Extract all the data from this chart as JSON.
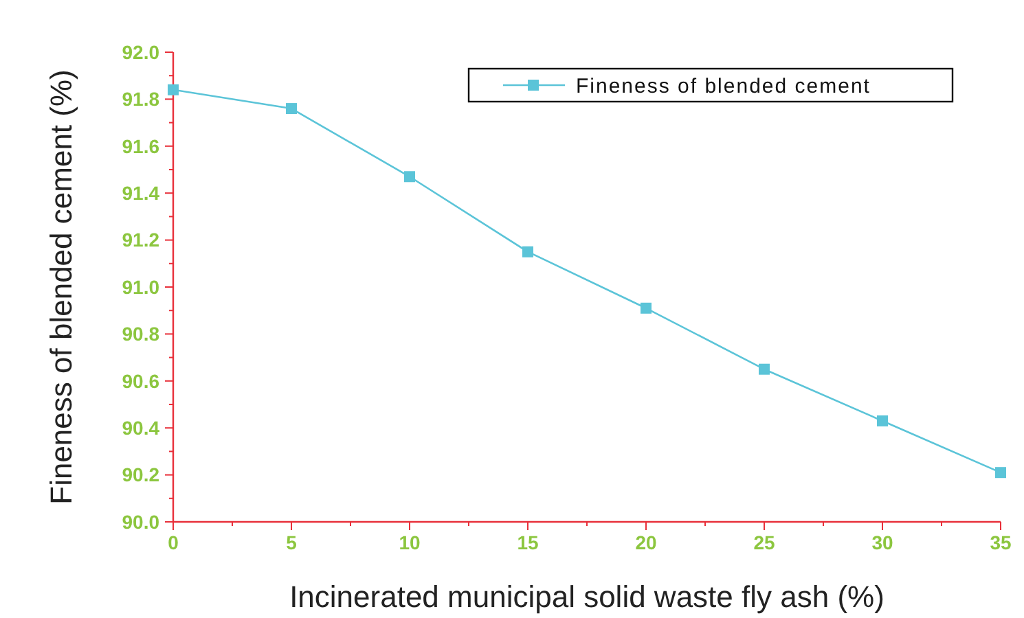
{
  "chart_data": {
    "type": "line",
    "xlabel": "Incinerated municipal solid waste fly ash (%)",
    "ylabel": "Fineness of blended cement (%)",
    "x": [
      0,
      5,
      10,
      15,
      20,
      25,
      30,
      35
    ],
    "series": [
      {
        "name": "Fineness of blended cement",
        "color": "#5bc4d8",
        "values": [
          91.84,
          91.76,
          91.47,
          91.15,
          90.91,
          90.65,
          90.43,
          90.21
        ]
      }
    ],
    "xlim": [
      0,
      35
    ],
    "xticks": [
      0,
      5,
      10,
      15,
      20,
      25,
      30,
      35
    ],
    "ylim": [
      90.0,
      92.0
    ],
    "yticks": [
      {
        "value": 90,
        "label": "90.0"
      },
      {
        "value": 90.2,
        "label": "90.2"
      },
      {
        "value": 90.4,
        "label": "90.4"
      },
      {
        "value": 90.6,
        "label": "90.6"
      },
      {
        "value": 90.8,
        "label": "90.8"
      },
      {
        "value": 91,
        "label": "91.0"
      },
      {
        "value": 91.2,
        "label": "91.2"
      },
      {
        "value": 91.4,
        "label": "91.4"
      },
      {
        "value": 91.6,
        "label": "91.6"
      },
      {
        "value": 91.8,
        "label": "91.8"
      },
      {
        "value": 92,
        "label": "92.0"
      }
    ],
    "marker": "square",
    "line_style": "solid",
    "legend": "top right",
    "grid": false
  }
}
